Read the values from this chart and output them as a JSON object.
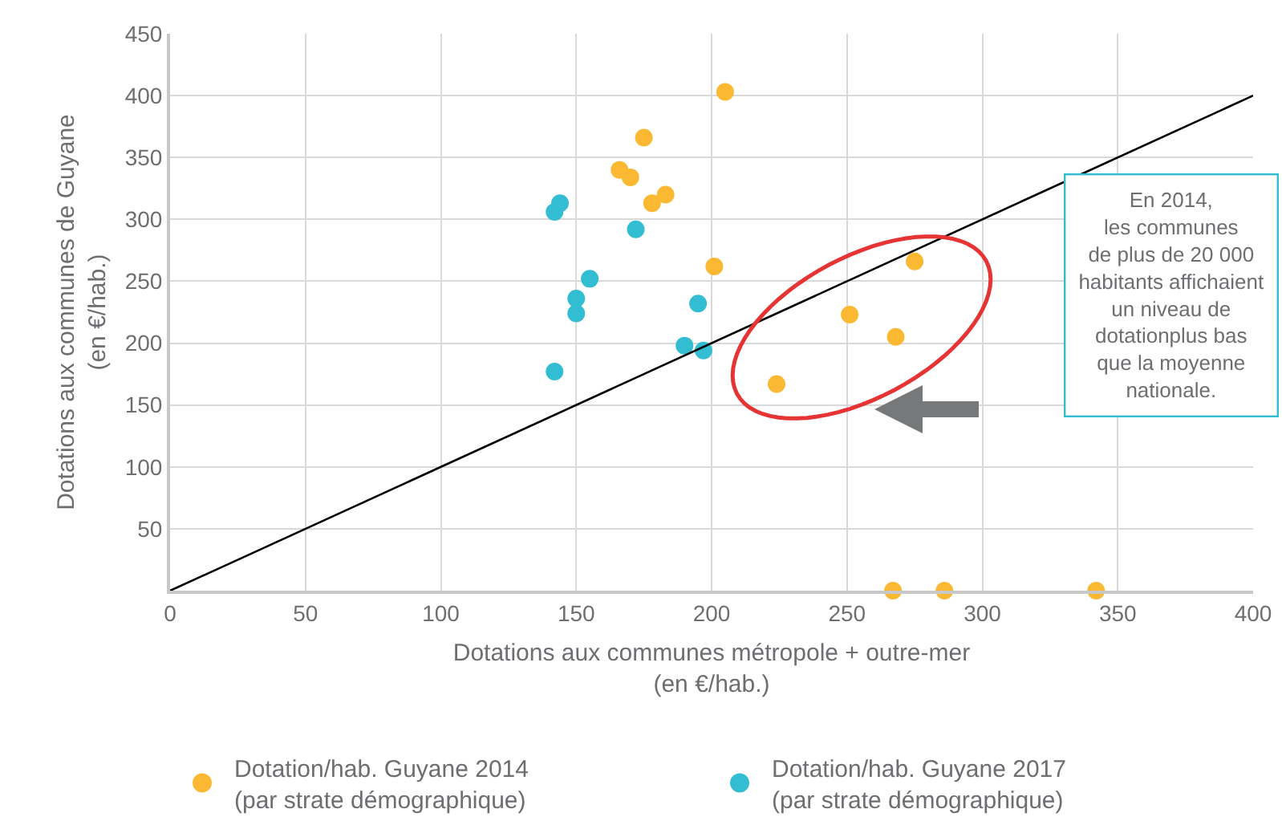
{
  "chart_data": {
    "type": "scatter",
    "xlabel": "Dotations aux communes métropole + outre-mer\n(en €/hab.)",
    "ylabel": "Dotations aux communes de Guyane\n(en €/hab.)",
    "series": [
      {
        "name": "Dotation/hab. Guyane 2014\n(par strate démographique)",
        "color": "#fbb933",
        "x": [
          205,
          175,
          166,
          170,
          183,
          178,
          201,
          275,
          251,
          268,
          224,
          267,
          286,
          342
        ],
        "values": [
          403,
          366,
          340,
          334,
          320,
          313,
          262,
          266,
          223,
          205,
          167,
          0,
          0,
          0
        ]
      },
      {
        "name": "Dotation/hab. Guyane 2017\n(par strate démographique)",
        "color": "#33bdd3",
        "x": [
          144,
          142,
          172,
          155,
          150,
          150,
          142,
          195,
          190,
          197
        ],
        "values": [
          313,
          306,
          292,
          252,
          236,
          224,
          177,
          232,
          198,
          194
        ]
      },
      {
        "type": "line",
        "color": "#000000",
        "marker": "none",
        "x": [
          0,
          400
        ],
        "values": [
          0,
          400
        ]
      }
    ],
    "annotations": [
      "En 2014,\nles communes\nde plus de 20 000\nhabitants affichaient\nun niveau de\ndotationplus bas\nque la moyenne\nnationale."
    ],
    "xlim": [
      0,
      400
    ],
    "xticks": [
      0,
      50,
      100,
      150,
      200,
      250,
      300,
      350,
      400
    ],
    "ylim": [
      0,
      450
    ],
    "yticks": [
      50,
      100,
      150,
      200,
      250,
      300,
      350,
      400,
      450
    ],
    "grid": true,
    "legend": "bottom",
    "marker": "circle"
  }
}
